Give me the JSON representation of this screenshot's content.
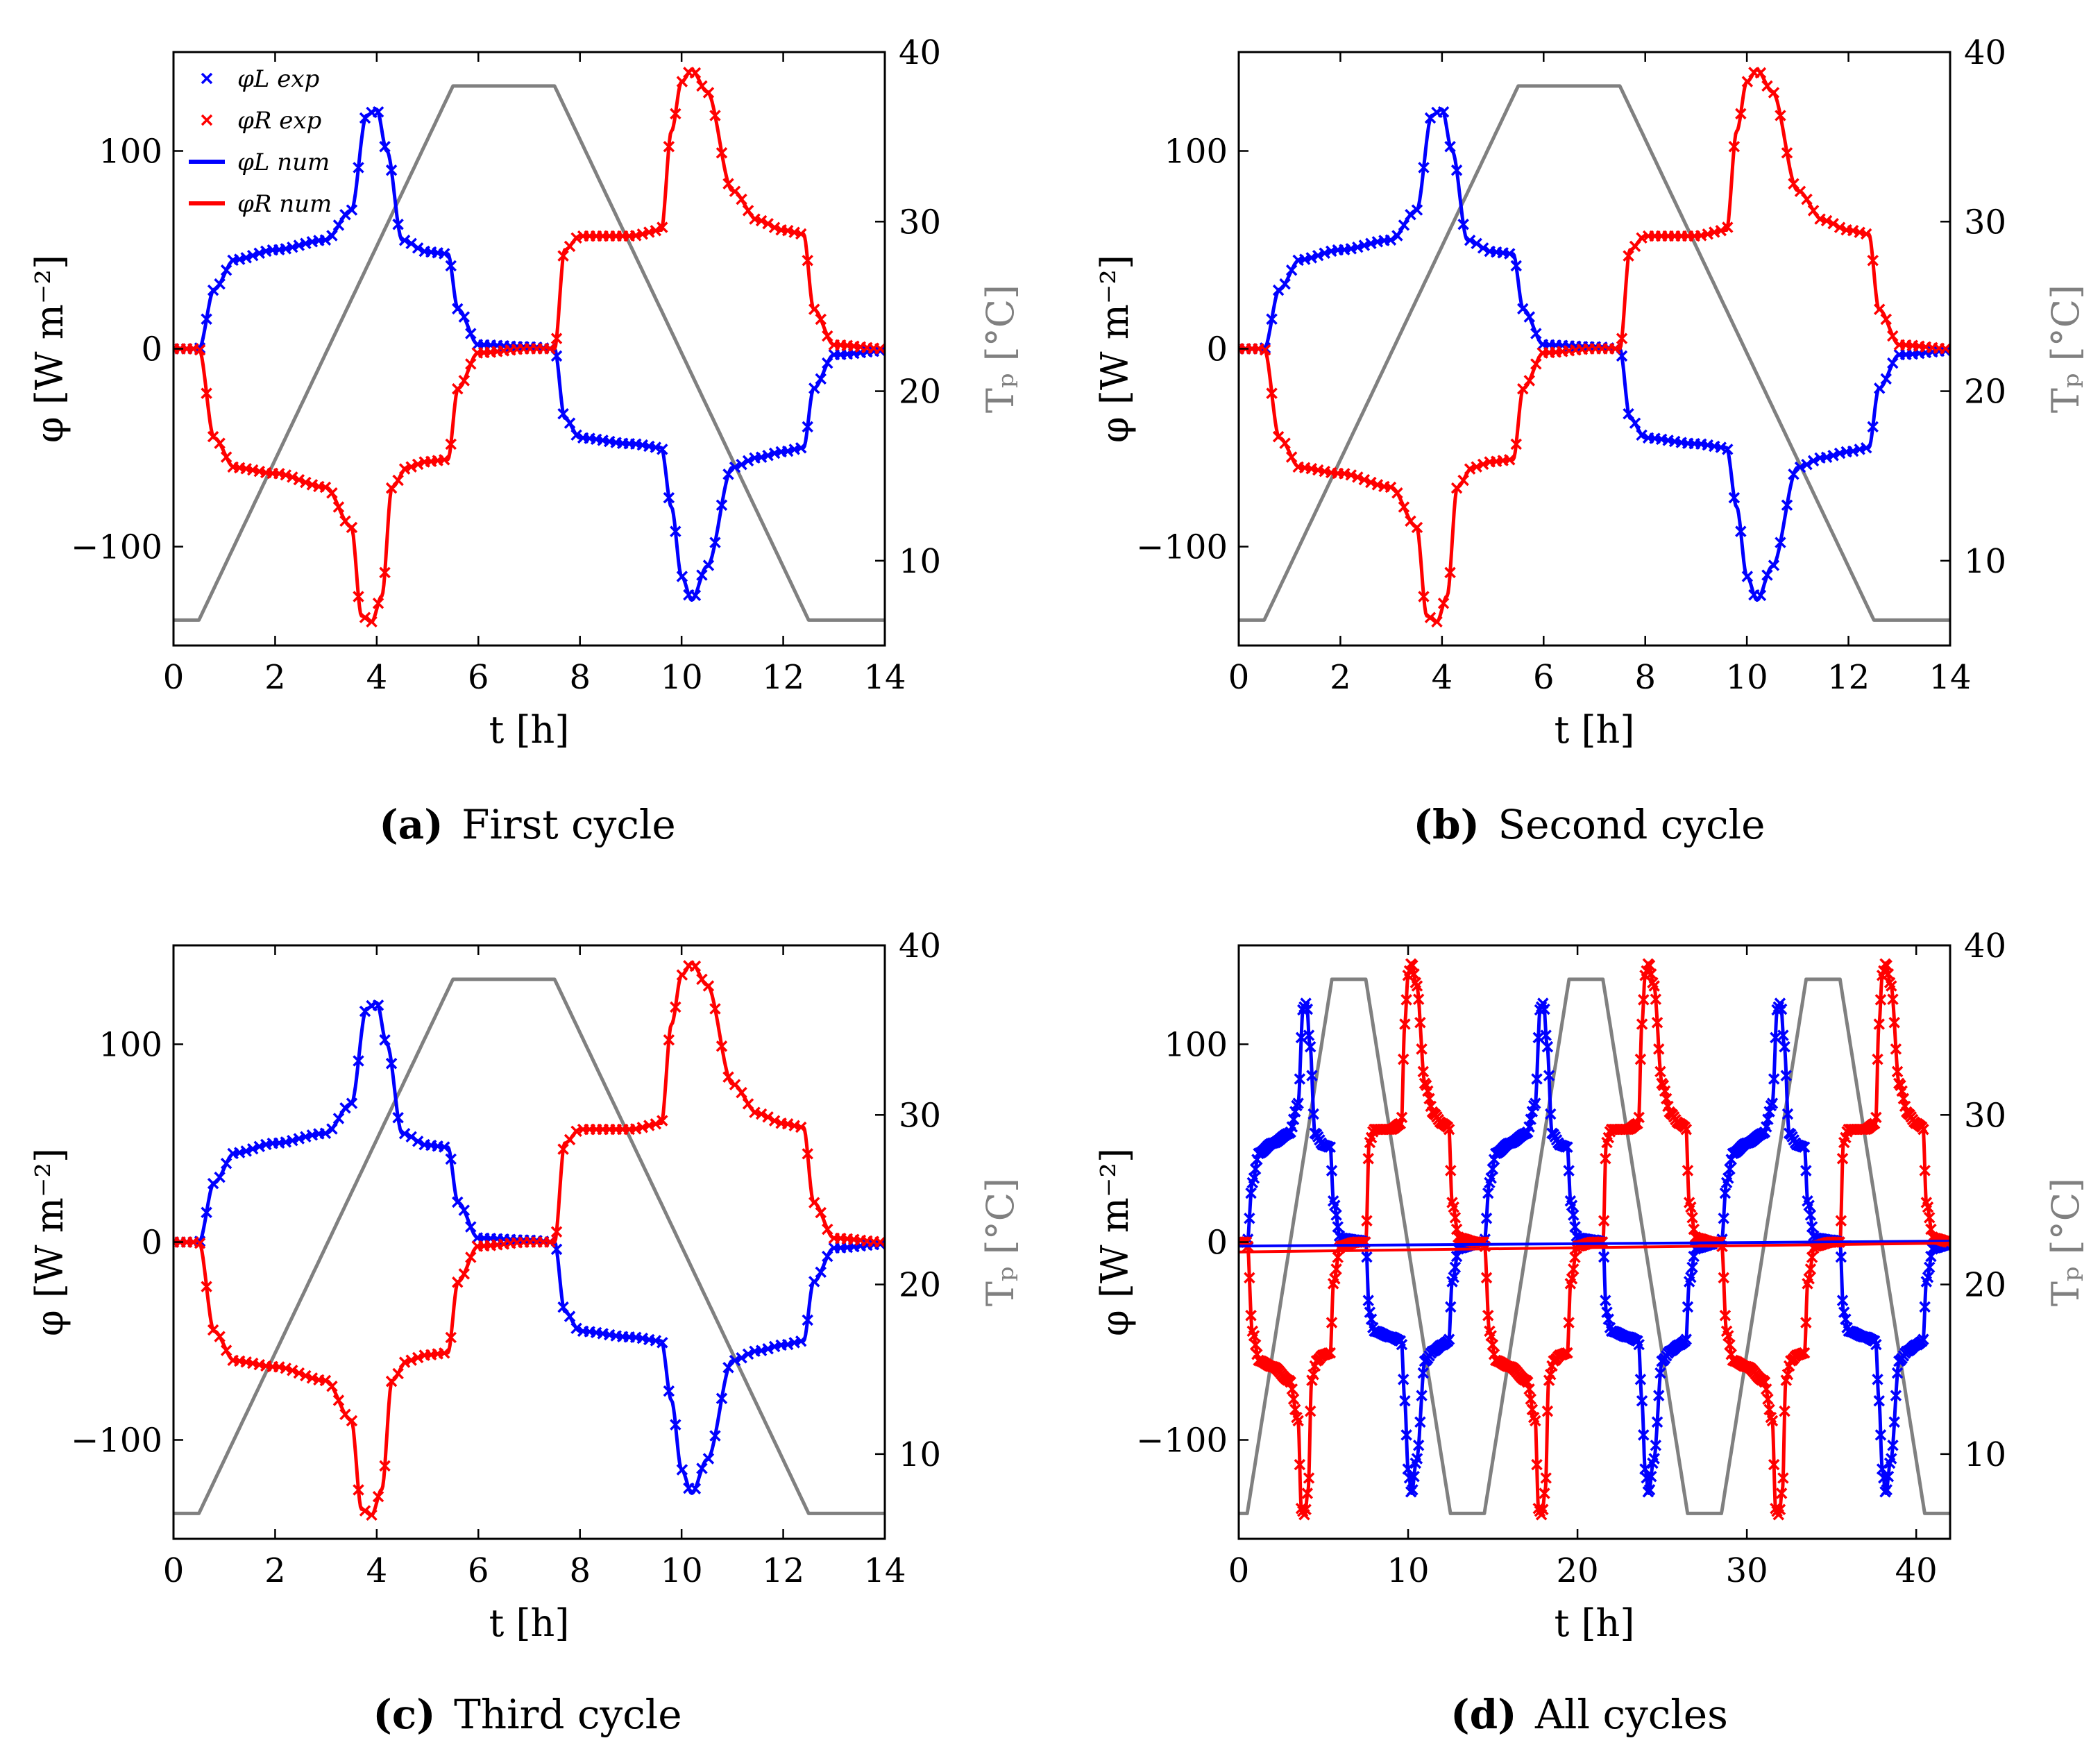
{
  "figure": {
    "panels": [
      {
        "id": "a",
        "caption_letter": "(a)",
        "caption_text": "First cycle"
      },
      {
        "id": "b",
        "caption_letter": "(b)",
        "caption_text": "Second cycle"
      },
      {
        "id": "c",
        "caption_letter": "(c)",
        "caption_text": "Third cycle"
      },
      {
        "id": "d",
        "caption_letter": "(d)",
        "caption_text": "All cycles"
      }
    ],
    "axis_labels": {
      "x": "t [h]",
      "y_left": "φ [W m⁻²]",
      "y_right": "Tₚ [°C]"
    },
    "legend": [
      "φL exp",
      "φR exp",
      "φL num",
      "φR num"
    ],
    "colors": {
      "left": "#0000ff",
      "right": "#ff0000",
      "temperature": "#808080"
    }
  },
  "chart_data": [
    {
      "type": "line",
      "panel": "a",
      "title": "First cycle",
      "xlabel": "t [h]",
      "ylabel": "φ [W m⁻²]",
      "y2label": "Tₚ [°C]",
      "xlim": [
        0,
        14
      ],
      "ylim": [
        -150,
        150
      ],
      "y2lim": [
        5,
        40
      ],
      "xticks": [
        0,
        2,
        4,
        6,
        8,
        10,
        12,
        14
      ],
      "yticks": [
        -100,
        0,
        100
      ],
      "y2ticks": [
        10,
        20,
        30,
        40
      ],
      "series": [
        {
          "name": "φL num",
          "axis": "left",
          "x": [
            0,
            0.5,
            0.8,
            1.2,
            2,
            3,
            3.5,
            3.8,
            4.0,
            4.2,
            4.5,
            5.0,
            5.4,
            5.6,
            6.0,
            7.0,
            7.5,
            7.7,
            8.0,
            9.0,
            9.6,
            9.8,
            10.0,
            10.2,
            10.5,
            11.0,
            11.5,
            12.0,
            12.4,
            12.6,
            13.0,
            14
          ],
          "y": [
            0,
            0,
            30,
            45,
            50,
            55,
            70,
            118,
            121,
            100,
            55,
            49,
            48,
            20,
            2,
            1,
            0,
            -35,
            -45,
            -48,
            -50,
            -80,
            -115,
            -127,
            -110,
            -60,
            -55,
            -52,
            -50,
            -20,
            -3,
            -1
          ]
        },
        {
          "name": "φR num",
          "axis": "right_of_left",
          "x": [
            0,
            0.5,
            0.8,
            1.2,
            2,
            3,
            3.5,
            3.7,
            3.9,
            4.1,
            4.3,
            4.6,
            5.0,
            5.4,
            5.6,
            6.0,
            7.0,
            7.5,
            7.7,
            8.0,
            9.0,
            9.6,
            9.8,
            10.0,
            10.2,
            10.5,
            11.0,
            11.5,
            12.0,
            12.4,
            12.6,
            13.0,
            14
          ],
          "y": [
            0,
            0,
            -45,
            -60,
            -63,
            -70,
            -90,
            -135,
            -138,
            -125,
            -70,
            -60,
            -57,
            -56,
            -20,
            -2,
            0,
            0,
            50,
            57,
            57,
            60,
            110,
            135,
            141,
            130,
            80,
            65,
            60,
            58,
            20,
            2,
            0
          ]
        },
        {
          "name": "Tp",
          "axis": "temperature",
          "x": [
            0,
            0.5,
            5.5,
            7.5,
            12.5,
            14
          ],
          "y": [
            6.5,
            6.5,
            38,
            38,
            6.5,
            6.5
          ]
        }
      ]
    },
    {
      "type": "line",
      "panel": "b",
      "title": "Second cycle",
      "xlabel": "t [h]",
      "ylabel": "φ [W m⁻²]",
      "y2label": "Tₚ [°C]",
      "xlim": [
        0,
        14
      ],
      "ylim": [
        -150,
        150
      ],
      "y2lim": [
        5,
        40
      ],
      "xticks": [
        0,
        2,
        4,
        6,
        8,
        10,
        12,
        14
      ],
      "yticks": [
        -100,
        0,
        100
      ],
      "y2ticks": [
        10,
        20,
        30,
        40
      ],
      "series": [
        {
          "name": "φL num",
          "axis": "left",
          "x": [
            0,
            0.5,
            0.8,
            1.2,
            2,
            3,
            3.5,
            3.8,
            4.0,
            4.2,
            4.5,
            5.0,
            5.4,
            5.6,
            6.0,
            7.0,
            7.5,
            7.7,
            8.0,
            9.0,
            9.6,
            9.8,
            10.0,
            10.2,
            10.5,
            11.0,
            11.5,
            12.0,
            12.4,
            12.6,
            13.0,
            14
          ],
          "y": [
            0,
            0,
            30,
            45,
            50,
            55,
            70,
            118,
            121,
            100,
            55,
            49,
            48,
            20,
            2,
            1,
            0,
            -35,
            -45,
            -48,
            -50,
            -80,
            -115,
            -127,
            -110,
            -60,
            -55,
            -52,
            -50,
            -20,
            -3,
            -1
          ]
        },
        {
          "name": "φR num",
          "axis": "left",
          "x": [
            0,
            0.5,
            0.8,
            1.2,
            2,
            3,
            3.5,
            3.7,
            3.9,
            4.1,
            4.3,
            4.6,
            5.0,
            5.4,
            5.6,
            6.0,
            7.0,
            7.5,
            7.7,
            8.0,
            9.0,
            9.6,
            9.8,
            10.0,
            10.2,
            10.5,
            11.0,
            11.5,
            12.0,
            12.4,
            12.6,
            13.0,
            14
          ],
          "y": [
            0,
            0,
            -45,
            -60,
            -63,
            -70,
            -90,
            -135,
            -138,
            -125,
            -70,
            -60,
            -57,
            -56,
            -20,
            -2,
            0,
            0,
            50,
            57,
            57,
            60,
            110,
            135,
            141,
            130,
            80,
            65,
            60,
            58,
            20,
            2,
            0
          ]
        },
        {
          "name": "Tp",
          "axis": "temperature",
          "x": [
            0,
            0.5,
            5.5,
            7.5,
            12.5,
            14
          ],
          "y": [
            6.5,
            6.5,
            38,
            38,
            6.5,
            6.5
          ]
        }
      ]
    },
    {
      "type": "line",
      "panel": "c",
      "title": "Third cycle",
      "xlabel": "t [h]",
      "ylabel": "φ [W m⁻²]",
      "y2label": "Tₚ [°C]",
      "xlim": [
        0,
        14
      ],
      "ylim": [
        -150,
        150
      ],
      "y2lim": [
        5,
        40
      ],
      "xticks": [
        0,
        2,
        4,
        6,
        8,
        10,
        12,
        14
      ],
      "yticks": [
        -100,
        0,
        100
      ],
      "y2ticks": [
        10,
        20,
        30,
        40
      ],
      "series": [
        {
          "name": "φL num",
          "axis": "left",
          "x": [
            0,
            0.5,
            0.8,
            1.2,
            2,
            3,
            3.5,
            3.8,
            4.0,
            4.2,
            4.5,
            5.0,
            5.4,
            5.6,
            6.0,
            7.0,
            7.5,
            7.7,
            8.0,
            9.0,
            9.6,
            9.8,
            10.0,
            10.2,
            10.5,
            11.0,
            11.5,
            12.0,
            12.4,
            12.6,
            13.0,
            14
          ],
          "y": [
            0,
            0,
            30,
            45,
            50,
            55,
            70,
            118,
            121,
            100,
            55,
            49,
            48,
            20,
            2,
            1,
            0,
            -35,
            -45,
            -48,
            -50,
            -80,
            -115,
            -127,
            -110,
            -60,
            -55,
            -52,
            -50,
            -20,
            -3,
            -1
          ]
        },
        {
          "name": "φR num",
          "axis": "left",
          "x": [
            0,
            0.5,
            0.8,
            1.2,
            2,
            3,
            3.5,
            3.7,
            3.9,
            4.1,
            4.3,
            4.6,
            5.0,
            5.4,
            5.6,
            6.0,
            7.0,
            7.5,
            7.7,
            8.0,
            9.0,
            9.6,
            9.8,
            10.0,
            10.2,
            10.5,
            11.0,
            11.5,
            12.0,
            12.4,
            12.6,
            13.0,
            14
          ],
          "y": [
            0,
            0,
            -45,
            -60,
            -63,
            -70,
            -90,
            -135,
            -138,
            -125,
            -70,
            -60,
            -57,
            -56,
            -20,
            -2,
            0,
            0,
            50,
            57,
            57,
            60,
            110,
            135,
            141,
            130,
            80,
            65,
            60,
            58,
            20,
            2,
            0
          ]
        },
        {
          "name": "Tp",
          "axis": "temperature",
          "x": [
            0,
            0.5,
            5.5,
            7.5,
            12.5,
            14
          ],
          "y": [
            6.5,
            6.5,
            38,
            38,
            6.5,
            6.5
          ]
        }
      ]
    },
    {
      "type": "line",
      "panel": "d",
      "title": "All cycles",
      "xlabel": "t [h]",
      "ylabel": "φ [W m⁻²]",
      "y2label": "Tₚ [°C]",
      "xlim": [
        0,
        42
      ],
      "ylim": [
        -150,
        150
      ],
      "y2lim": [
        5,
        40
      ],
      "xticks": [
        0,
        10,
        20,
        30,
        40
      ],
      "yticks": [
        -100,
        0,
        100
      ],
      "y2ticks": [
        10,
        20,
        30,
        40
      ],
      "cycles": 3,
      "cycle_period_h": 14,
      "series": [
        {
          "name": "φL num",
          "axis": "left",
          "repeat_of_panel": "a"
        },
        {
          "name": "φR num",
          "axis": "left",
          "repeat_of_panel": "a"
        },
        {
          "name": "Tp",
          "axis": "temperature",
          "repeat_of_panel": "a"
        }
      ]
    }
  ]
}
